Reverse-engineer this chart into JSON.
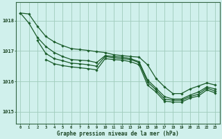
{
  "xlabel": "Graphe pression niveau de la mer (hPa)",
  "xlim": [
    -0.5,
    23.5
  ],
  "ylim": [
    1014.6,
    1018.6
  ],
  "yticks": [
    1015,
    1016,
    1017,
    1018
  ],
  "xticks": [
    0,
    1,
    2,
    3,
    4,
    5,
    6,
    7,
    8,
    9,
    10,
    11,
    12,
    13,
    14,
    15,
    16,
    17,
    18,
    19,
    20,
    21,
    22,
    23
  ],
  "bg_color": "#d0f0ec",
  "grid_color": "#a0ccbb",
  "line_color": "#1a5c2a",
  "axes_color": "#336644",
  "label_color": "#1a4422",
  "lines": [
    {
      "x": [
        0,
        1,
        2,
        3,
        4,
        5,
        6,
        7,
        8,
        9,
        10,
        11,
        12,
        13,
        14,
        15,
        16,
        17,
        18,
        19,
        20,
        21,
        22,
        23
      ],
      "y": [
        1018.25,
        1018.22,
        1017.82,
        1017.48,
        1017.3,
        1017.18,
        1017.08,
        1017.05,
        1017.02,
        1016.98,
        1016.95,
        1016.88,
        1016.85,
        1016.82,
        1016.8,
        1016.55,
        1016.1,
        1015.82,
        1015.6,
        1015.6,
        1015.75,
        1015.85,
        1015.95,
        1015.88
      ]
    },
    {
      "x": [
        0,
        1,
        2,
        3,
        4,
        5,
        6,
        7,
        8,
        9,
        10,
        11,
        12,
        13,
        14,
        15,
        16,
        17,
        18,
        19,
        20,
        21,
        22,
        23
      ],
      "y": [
        1018.25,
        1017.92,
        1017.45,
        1017.15,
        1016.95,
        1016.82,
        1016.72,
        1016.7,
        1016.68,
        1016.62,
        1016.85,
        1016.82,
        1016.8,
        1016.75,
        1016.65,
        1016.05,
        1015.78,
        1015.5,
        1015.42,
        1015.42,
        1015.55,
        1015.65,
        1015.82,
        1015.75
      ]
    },
    {
      "x": [
        2,
        3,
        4,
        5,
        6,
        7,
        8,
        9,
        10,
        11,
        12,
        13,
        14,
        15,
        16,
        17,
        18,
        19,
        20,
        21,
        22,
        23
      ],
      "y": [
        1017.35,
        1016.92,
        1016.75,
        1016.68,
        1016.6,
        1016.58,
        1016.55,
        1016.5,
        1016.82,
        1016.78,
        1016.75,
        1016.72,
        1016.62,
        1015.98,
        1015.72,
        1015.42,
        1015.38,
        1015.38,
        1015.5,
        1015.58,
        1015.78,
        1015.68
      ]
    },
    {
      "x": [
        3,
        4,
        5,
        6,
        7,
        8,
        9,
        10,
        11,
        12,
        13,
        14,
        15,
        16,
        17,
        18,
        19,
        20,
        21,
        22,
        23
      ],
      "y": [
        1016.72,
        1016.58,
        1016.52,
        1016.48,
        1016.45,
        1016.42,
        1016.38,
        1016.75,
        1016.72,
        1016.7,
        1016.65,
        1016.55,
        1015.88,
        1015.65,
        1015.35,
        1015.32,
        1015.32,
        1015.45,
        1015.52,
        1015.72,
        1015.62
      ]
    }
  ]
}
